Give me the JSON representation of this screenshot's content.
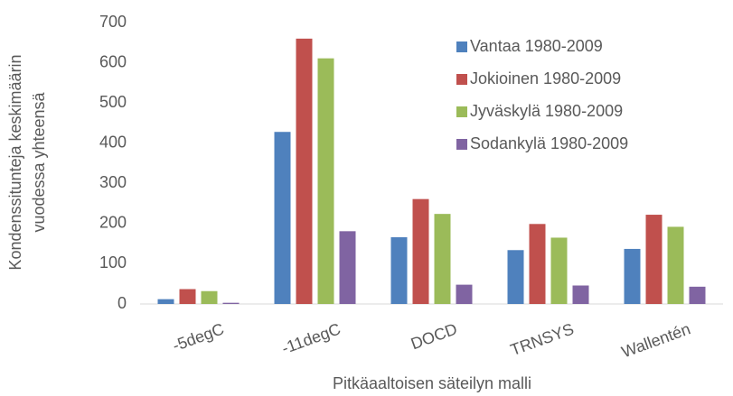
{
  "chart_data": {
    "type": "bar",
    "categories": [
      "-5degC",
      "-11degC",
      "DOCD",
      "TRNSYS",
      "Wallentén"
    ],
    "series": [
      {
        "name": "Vantaa 1980-2009",
        "color": "#4f81bd",
        "values": [
          12,
          428,
          166,
          134,
          137
        ]
      },
      {
        "name": "Jokioinen 1980-2009",
        "color": "#c0504d",
        "values": [
          37,
          660,
          261,
          199,
          222
        ]
      },
      {
        "name": "Jyväskylä 1980-2009",
        "color": "#9bbb59",
        "values": [
          32,
          611,
          224,
          165,
          192
        ]
      },
      {
        "name": "Sodankylä 1980-2009",
        "color": "#8064a2",
        "values": [
          3,
          181,
          48,
          46,
          43
        ]
      }
    ],
    "ylabel": [
      "Kondenssitunteja keskimäärin",
      "vuodessa yhteensä"
    ],
    "xlabel": "Pitkäaaltoisen säteilyn malli",
    "ylim": [
      0,
      700
    ],
    "yticks": [
      0,
      100,
      200,
      300,
      400,
      500,
      600,
      700
    ],
    "grid": false,
    "legend": "upper right"
  }
}
